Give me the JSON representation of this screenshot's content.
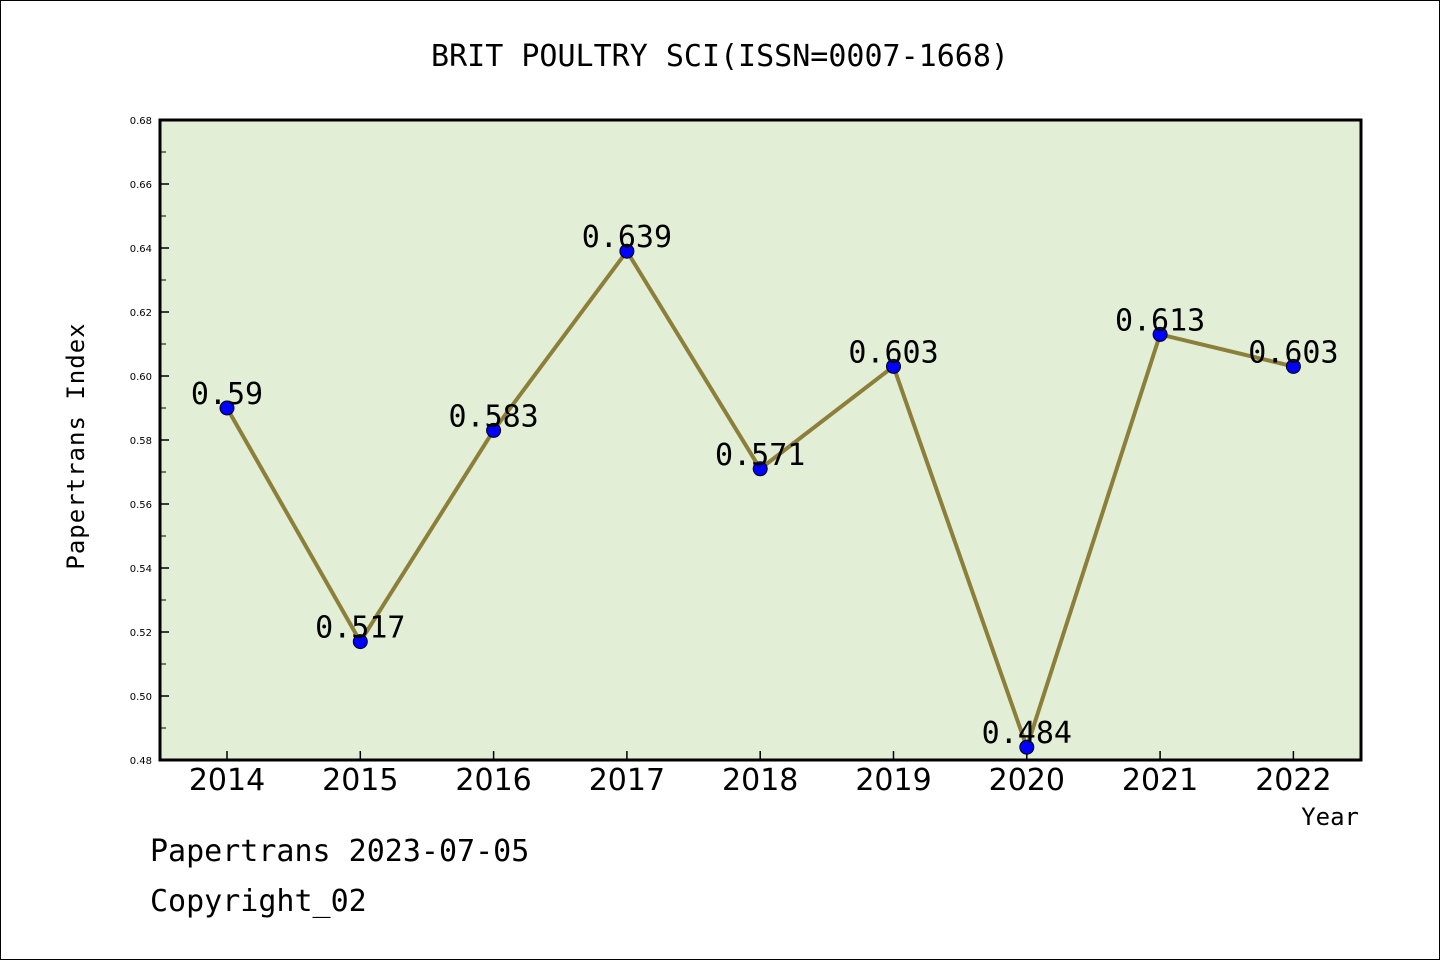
{
  "chart_data": {
    "type": "line",
    "title": "BRIT POULTRY SCI(ISSN=0007-1668)",
    "xlabel": "Year",
    "ylabel": "Papertrans Index",
    "categories": [
      "2014",
      "2015",
      "2016",
      "2017",
      "2018",
      "2019",
      "2020",
      "2021",
      "2022"
    ],
    "values": [
      0.59,
      0.517,
      0.583,
      0.639,
      0.571,
      0.603,
      0.484,
      0.613,
      0.603
    ],
    "data_labels": [
      "0.59",
      "0.517",
      "0.583",
      "0.639",
      "0.571",
      "0.603",
      "0.484",
      "0.613",
      "0.603"
    ],
    "ylim": [
      0.48,
      0.68
    ],
    "yticks": [
      "0.48",
      "0.50",
      "0.52",
      "0.54",
      "0.56",
      "0.58",
      "0.60",
      "0.62",
      "0.64",
      "0.66",
      "0.68"
    ],
    "grid": false,
    "colors": {
      "plot_background": "#e2efd6",
      "line": "#8c7f3a",
      "marker": "#0000ff"
    }
  },
  "footer": {
    "line1": "Papertrans 2023-07-05",
    "line2": "Copyright_02"
  }
}
